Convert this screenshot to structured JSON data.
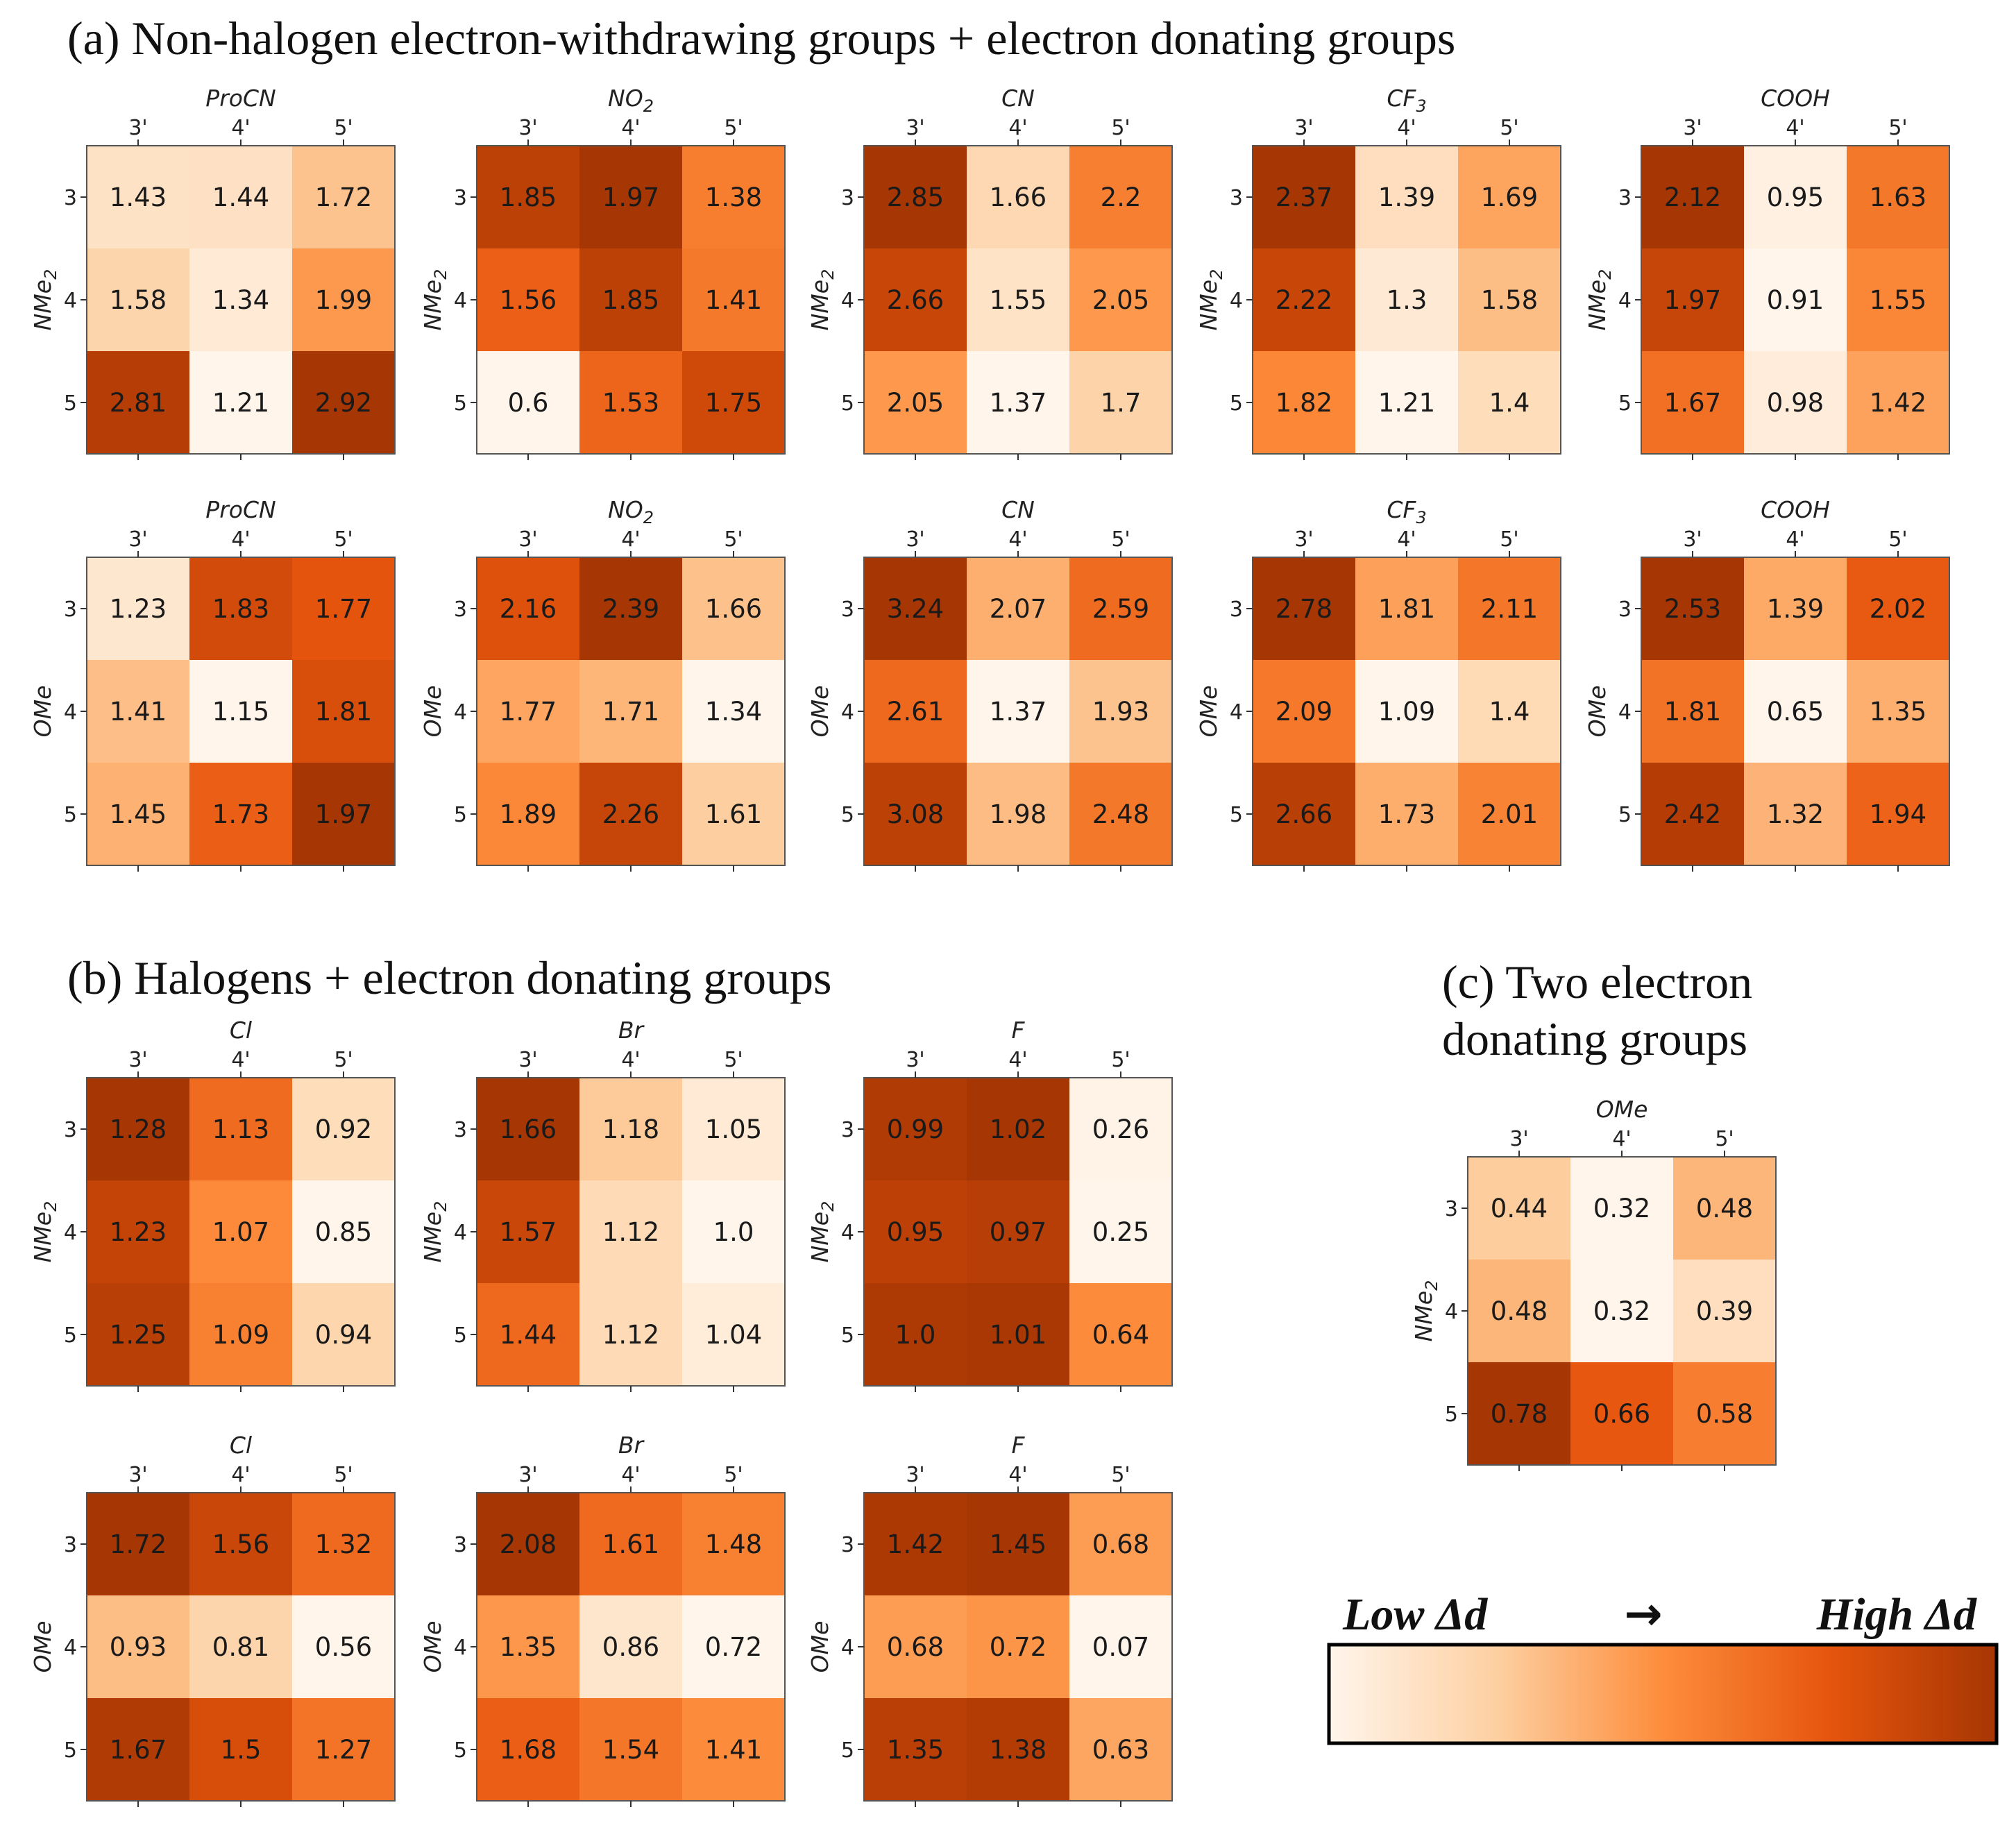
{
  "sections": {
    "a": "(a) Non-halogen electron-withdrawing groups + electron donating groups",
    "b": "(b) Halogens + electron donating groups",
    "c_line1": "(c) Two electron",
    "c_line2": "donating groups"
  },
  "legend": {
    "low": "Low Δd",
    "arrow": "→",
    "high": "High Δd",
    "colors": [
      "#fff5eb",
      "#fdd0a2",
      "#fd8d3c",
      "#e6550d",
      "#a63603"
    ]
  },
  "chart_data": [
    {
      "id": "a-nme2-procn",
      "type": "heatmap",
      "title": "ProCN",
      "title_sub": "",
      "ylabel": "NMe",
      "ylabel_sub": "2",
      "xticks": [
        "3'",
        "4'",
        "5'"
      ],
      "yticks": [
        "3",
        "4",
        "5"
      ],
      "values": [
        [
          1.43,
          1.44,
          1.72
        ],
        [
          1.58,
          1.34,
          1.99
        ],
        [
          2.81,
          1.21,
          2.92
        ]
      ],
      "labels": [
        [
          "1.43",
          "1.44",
          "1.72"
        ],
        [
          "1.58",
          "1.34",
          "1.99"
        ],
        [
          "2.81",
          "1.21",
          "2.92"
        ]
      ]
    },
    {
      "id": "a-nme2-no2",
      "type": "heatmap",
      "title": "NO",
      "title_sub": "2",
      "ylabel": "NMe",
      "ylabel_sub": "2",
      "xticks": [
        "3'",
        "4'",
        "5'"
      ],
      "yticks": [
        "3",
        "4",
        "5"
      ],
      "values": [
        [
          1.85,
          1.97,
          1.38
        ],
        [
          1.56,
          1.85,
          1.41
        ],
        [
          0.6,
          1.53,
          1.75
        ]
      ],
      "labels": [
        [
          "1.85",
          "1.97",
          "1.38"
        ],
        [
          "1.56",
          "1.85",
          "1.41"
        ],
        [
          "0.6",
          "1.53",
          "1.75"
        ]
      ]
    },
    {
      "id": "a-nme2-cn",
      "type": "heatmap",
      "title": "CN",
      "title_sub": "",
      "ylabel": "NMe",
      "ylabel_sub": "2",
      "xticks": [
        "3'",
        "4'",
        "5'"
      ],
      "yticks": [
        "3",
        "4",
        "5"
      ],
      "values": [
        [
          2.85,
          1.66,
          2.2
        ],
        [
          2.66,
          1.55,
          2.05
        ],
        [
          2.05,
          1.37,
          1.7
        ]
      ],
      "labels": [
        [
          "2.85",
          "1.66",
          "2.2"
        ],
        [
          "2.66",
          "1.55",
          "2.05"
        ],
        [
          "2.05",
          "1.37",
          "1.7"
        ]
      ]
    },
    {
      "id": "a-nme2-cf3",
      "type": "heatmap",
      "title": "CF",
      "title_sub": "3",
      "ylabel": "NMe",
      "ylabel_sub": "2",
      "xticks": [
        "3'",
        "4'",
        "5'"
      ],
      "yticks": [
        "3",
        "4",
        "5"
      ],
      "values": [
        [
          2.37,
          1.39,
          1.69
        ],
        [
          2.22,
          1.3,
          1.58
        ],
        [
          1.82,
          1.21,
          1.4
        ]
      ],
      "labels": [
        [
          "2.37",
          "1.39",
          "1.69"
        ],
        [
          "2.22",
          "1.3",
          "1.58"
        ],
        [
          "1.82",
          "1.21",
          "1.4"
        ]
      ]
    },
    {
      "id": "a-nme2-cooh",
      "type": "heatmap",
      "title": "COOH",
      "title_sub": "",
      "ylabel": "NMe",
      "ylabel_sub": "2",
      "xticks": [
        "3'",
        "4'",
        "5'"
      ],
      "yticks": [
        "3",
        "4",
        "5"
      ],
      "values": [
        [
          2.12,
          0.95,
          1.63
        ],
        [
          1.97,
          0.91,
          1.55
        ],
        [
          1.67,
          0.98,
          1.42
        ]
      ],
      "labels": [
        [
          "2.12",
          "0.95",
          "1.63"
        ],
        [
          "1.97",
          "0.91",
          "1.55"
        ],
        [
          "1.67",
          "0.98",
          "1.42"
        ]
      ]
    },
    {
      "id": "a-ome-procn",
      "type": "heatmap",
      "title": "ProCN",
      "title_sub": "",
      "ylabel": "OMe",
      "ylabel_sub": "",
      "xticks": [
        "3'",
        "4'",
        "5'"
      ],
      "yticks": [
        "3",
        "4",
        "5"
      ],
      "values": [
        [
          1.23,
          1.83,
          1.77
        ],
        [
          1.41,
          1.15,
          1.81
        ],
        [
          1.45,
          1.73,
          1.97
        ]
      ],
      "labels": [
        [
          "1.23",
          "1.83",
          "1.77"
        ],
        [
          "1.41",
          "1.15",
          "1.81"
        ],
        [
          "1.45",
          "1.73",
          "1.97"
        ]
      ]
    },
    {
      "id": "a-ome-no2",
      "type": "heatmap",
      "title": "NO",
      "title_sub": "2",
      "ylabel": "OMe",
      "ylabel_sub": "",
      "xticks": [
        "3'",
        "4'",
        "5'"
      ],
      "yticks": [
        "3",
        "4",
        "5"
      ],
      "values": [
        [
          2.16,
          2.39,
          1.66
        ],
        [
          1.77,
          1.71,
          1.34
        ],
        [
          1.89,
          2.26,
          1.61
        ]
      ],
      "labels": [
        [
          "2.16",
          "2.39",
          "1.66"
        ],
        [
          "1.77",
          "1.71",
          "1.34"
        ],
        [
          "1.89",
          "2.26",
          "1.61"
        ]
      ]
    },
    {
      "id": "a-ome-cn",
      "type": "heatmap",
      "title": "CN",
      "title_sub": "",
      "ylabel": "OMe",
      "ylabel_sub": "",
      "xticks": [
        "3'",
        "4'",
        "5'"
      ],
      "yticks": [
        "3",
        "4",
        "5"
      ],
      "values": [
        [
          3.24,
          2.07,
          2.59
        ],
        [
          2.61,
          1.37,
          1.93
        ],
        [
          3.08,
          1.98,
          2.48
        ]
      ],
      "labels": [
        [
          "3.24",
          "2.07",
          "2.59"
        ],
        [
          "2.61",
          "1.37",
          "1.93"
        ],
        [
          "3.08",
          "1.98",
          "2.48"
        ]
      ]
    },
    {
      "id": "a-ome-cf3",
      "type": "heatmap",
      "title": "CF",
      "title_sub": "3",
      "ylabel": "OMe",
      "ylabel_sub": "",
      "xticks": [
        "3'",
        "4'",
        "5'"
      ],
      "yticks": [
        "3",
        "4",
        "5"
      ],
      "values": [
        [
          2.78,
          1.81,
          2.11
        ],
        [
          2.09,
          1.09,
          1.4
        ],
        [
          2.66,
          1.73,
          2.01
        ]
      ],
      "labels": [
        [
          "2.78",
          "1.81",
          "2.11"
        ],
        [
          "2.09",
          "1.09",
          "1.4"
        ],
        [
          "2.66",
          "1.73",
          "2.01"
        ]
      ]
    },
    {
      "id": "a-ome-cooh",
      "type": "heatmap",
      "title": "COOH",
      "title_sub": "",
      "ylabel": "OMe",
      "ylabel_sub": "",
      "xticks": [
        "3'",
        "4'",
        "5'"
      ],
      "yticks": [
        "3",
        "4",
        "5"
      ],
      "values": [
        [
          2.53,
          1.39,
          2.02
        ],
        [
          1.81,
          0.65,
          1.35
        ],
        [
          2.42,
          1.32,
          1.94
        ]
      ],
      "labels": [
        [
          "2.53",
          "1.39",
          "2.02"
        ],
        [
          "1.81",
          "0.65",
          "1.35"
        ],
        [
          "2.42",
          "1.32",
          "1.94"
        ]
      ]
    },
    {
      "id": "b-nme2-cl",
      "type": "heatmap",
      "title": "Cl",
      "title_sub": "",
      "ylabel": "NMe",
      "ylabel_sub": "2",
      "xticks": [
        "3'",
        "4'",
        "5'"
      ],
      "yticks": [
        "3",
        "4",
        "5"
      ],
      "values": [
        [
          1.28,
          1.13,
          0.92
        ],
        [
          1.23,
          1.07,
          0.85
        ],
        [
          1.25,
          1.09,
          0.94
        ]
      ],
      "labels": [
        [
          "1.28",
          "1.13",
          "0.92"
        ],
        [
          "1.23",
          "1.07",
          "0.85"
        ],
        [
          "1.25",
          "1.09",
          "0.94"
        ]
      ]
    },
    {
      "id": "b-nme2-br",
      "type": "heatmap",
      "title": "Br",
      "title_sub": "",
      "ylabel": "NMe",
      "ylabel_sub": "2",
      "xticks": [
        "3'",
        "4'",
        "5'"
      ],
      "yticks": [
        "3",
        "4",
        "5"
      ],
      "values": [
        [
          1.66,
          1.18,
          1.05
        ],
        [
          1.57,
          1.12,
          1.0
        ],
        [
          1.44,
          1.12,
          1.04
        ]
      ],
      "labels": [
        [
          "1.66",
          "1.18",
          "1.05"
        ],
        [
          "1.57",
          "1.12",
          "1.0"
        ],
        [
          "1.44",
          "1.12",
          "1.04"
        ]
      ]
    },
    {
      "id": "b-nme2-f",
      "type": "heatmap",
      "title": "F",
      "title_sub": "",
      "ylabel": "NMe",
      "ylabel_sub": "2",
      "xticks": [
        "3'",
        "4'",
        "5'"
      ],
      "yticks": [
        "3",
        "4",
        "5"
      ],
      "values": [
        [
          0.99,
          1.02,
          0.26
        ],
        [
          0.95,
          0.97,
          0.25
        ],
        [
          1.0,
          1.01,
          0.64
        ]
      ],
      "labels": [
        [
          "0.99",
          "1.02",
          "0.26"
        ],
        [
          "0.95",
          "0.97",
          "0.25"
        ],
        [
          "1.0",
          "1.01",
          "0.64"
        ]
      ]
    },
    {
      "id": "b-ome-cl",
      "type": "heatmap",
      "title": "Cl",
      "title_sub": "",
      "ylabel": "OMe",
      "ylabel_sub": "",
      "xticks": [
        "3'",
        "4'",
        "5'"
      ],
      "yticks": [
        "3",
        "4",
        "5"
      ],
      "values": [
        [
          1.72,
          1.56,
          1.32
        ],
        [
          0.93,
          0.81,
          0.56
        ],
        [
          1.67,
          1.5,
          1.27
        ]
      ],
      "labels": [
        [
          "1.72",
          "1.56",
          "1.32"
        ],
        [
          "0.93",
          "0.81",
          "0.56"
        ],
        [
          "1.67",
          "1.5",
          "1.27"
        ]
      ]
    },
    {
      "id": "b-ome-br",
      "type": "heatmap",
      "title": "Br",
      "title_sub": "",
      "ylabel": "OMe",
      "ylabel_sub": "",
      "xticks": [
        "3'",
        "4'",
        "5'"
      ],
      "yticks": [
        "3",
        "4",
        "5"
      ],
      "values": [
        [
          2.08,
          1.61,
          1.48
        ],
        [
          1.35,
          0.86,
          0.72
        ],
        [
          1.68,
          1.54,
          1.41
        ]
      ],
      "labels": [
        [
          "2.08",
          "1.61",
          "1.48"
        ],
        [
          "1.35",
          "0.86",
          "0.72"
        ],
        [
          "1.68",
          "1.54",
          "1.41"
        ]
      ]
    },
    {
      "id": "b-ome-f",
      "type": "heatmap",
      "title": "F",
      "title_sub": "",
      "ylabel": "OMe",
      "ylabel_sub": "",
      "xticks": [
        "3'",
        "4'",
        "5'"
      ],
      "yticks": [
        "3",
        "4",
        "5"
      ],
      "values": [
        [
          1.42,
          1.45,
          0.68
        ],
        [
          0.68,
          0.72,
          0.07
        ],
        [
          1.35,
          1.38,
          0.63
        ]
      ],
      "labels": [
        [
          "1.42",
          "1.45",
          "0.68"
        ],
        [
          "0.68",
          "0.72",
          "0.07"
        ],
        [
          "1.35",
          "1.38",
          "0.63"
        ]
      ]
    },
    {
      "id": "c-nme2-ome",
      "type": "heatmap",
      "title": "OMe",
      "title_sub": "",
      "ylabel": "NMe",
      "ylabel_sub": "2",
      "xticks": [
        "3'",
        "4'",
        "5'"
      ],
      "yticks": [
        "3",
        "4",
        "5"
      ],
      "values": [
        [
          0.44,
          0.32,
          0.48
        ],
        [
          0.48,
          0.32,
          0.39
        ],
        [
          0.78,
          0.66,
          0.58
        ]
      ],
      "labels": [
        [
          "0.44",
          "0.32",
          "0.48"
        ],
        [
          "0.48",
          "0.32",
          "0.39"
        ],
        [
          "0.78",
          "0.66",
          "0.58"
        ]
      ]
    }
  ]
}
